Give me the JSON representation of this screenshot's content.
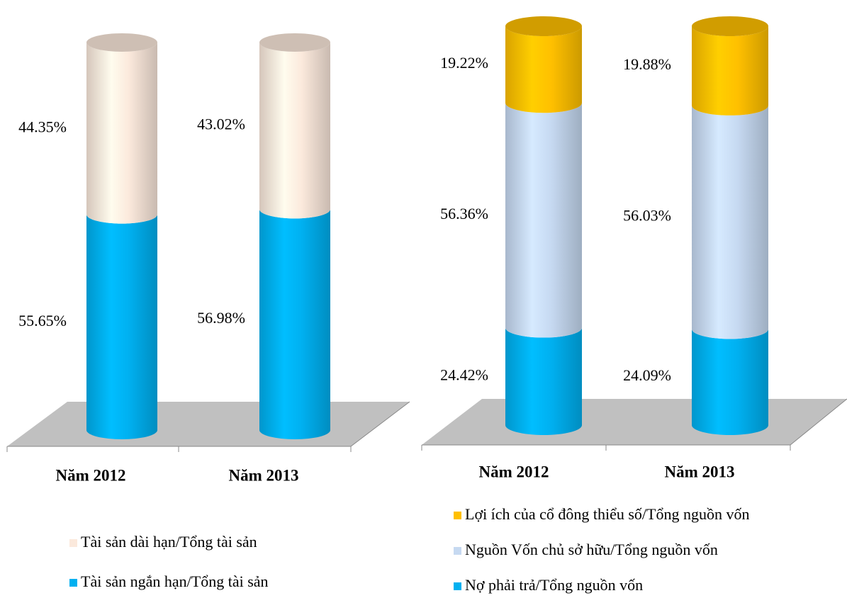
{
  "chart_data": [
    {
      "type": "bar",
      "stacked": true,
      "categories": [
        "Năm 2012",
        "Năm 2013"
      ],
      "series": [
        {
          "name": "Tài sản ngắn hạn/Tổng tài sản",
          "color": "#00b0f0",
          "values": [
            55.65,
            56.98
          ],
          "value_labels": [
            "55.65%",
            "56.98%"
          ]
        },
        {
          "name": "Tài sản dài hạn/Tổng tài sản",
          "color": "#fbe9dc",
          "values": [
            44.35,
            43.02
          ],
          "value_labels": [
            "44.35%",
            "43.02%"
          ]
        }
      ]
    },
    {
      "type": "bar",
      "stacked": true,
      "categories": [
        "Năm 2012",
        "Năm 2013"
      ],
      "series": [
        {
          "name": "Nợ phải trả/Tổng nguồn vốn",
          "color": "#00b0f0",
          "values": [
            24.42,
            24.09
          ],
          "value_labels": [
            "24.42%",
            "24.09%"
          ]
        },
        {
          "name": "Nguồn Vốn chủ sở hữu/Tổng nguồn vốn",
          "color": "#c6d9f1",
          "values": [
            56.36,
            56.03
          ],
          "value_labels": [
            "56.36%",
            "56.03%"
          ]
        },
        {
          "name": "Lợi ích của cổ đông thiểu số/Tổng nguồn vốn",
          "color": "#ffc000",
          "values": [
            19.22,
            19.88
          ],
          "value_labels": [
            "19.22%",
            "19.88%"
          ]
        }
      ]
    }
  ]
}
